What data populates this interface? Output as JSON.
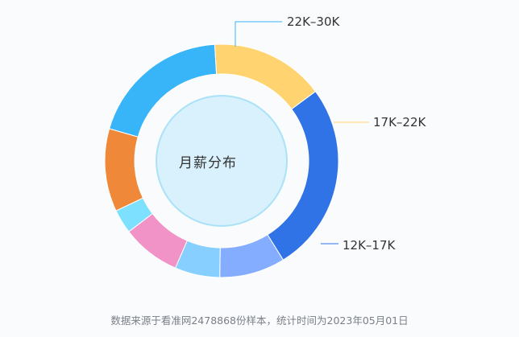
{
  "chart_data": {
    "type": "pie",
    "center_label": "月薪分布",
    "labels": [
      "22K-30K",
      "17K-22K",
      "12K-17K",
      "",
      "",
      "",
      "",
      ""
    ],
    "values": [
      20.5,
      16.5,
      27.5,
      9.5,
      6.5,
      8.5,
      3.5,
      12.0
    ],
    "colors": [
      "#38b4f9",
      "#ffd470",
      "#2f73e6",
      "#84acff",
      "#87cfff",
      "#f293c7",
      "#7ee0ff",
      "#f0883a"
    ],
    "inner_circle_color": "#d8f1fd",
    "inner_ring_color": "#a9e2f7"
  },
  "callouts": {
    "c0": "22K–30K",
    "c1": "17K–22K",
    "c2": "12K–17K"
  },
  "footer": {
    "note": "数据来源于看准网2478868份样本，统计时间为2023年05月01日"
  }
}
